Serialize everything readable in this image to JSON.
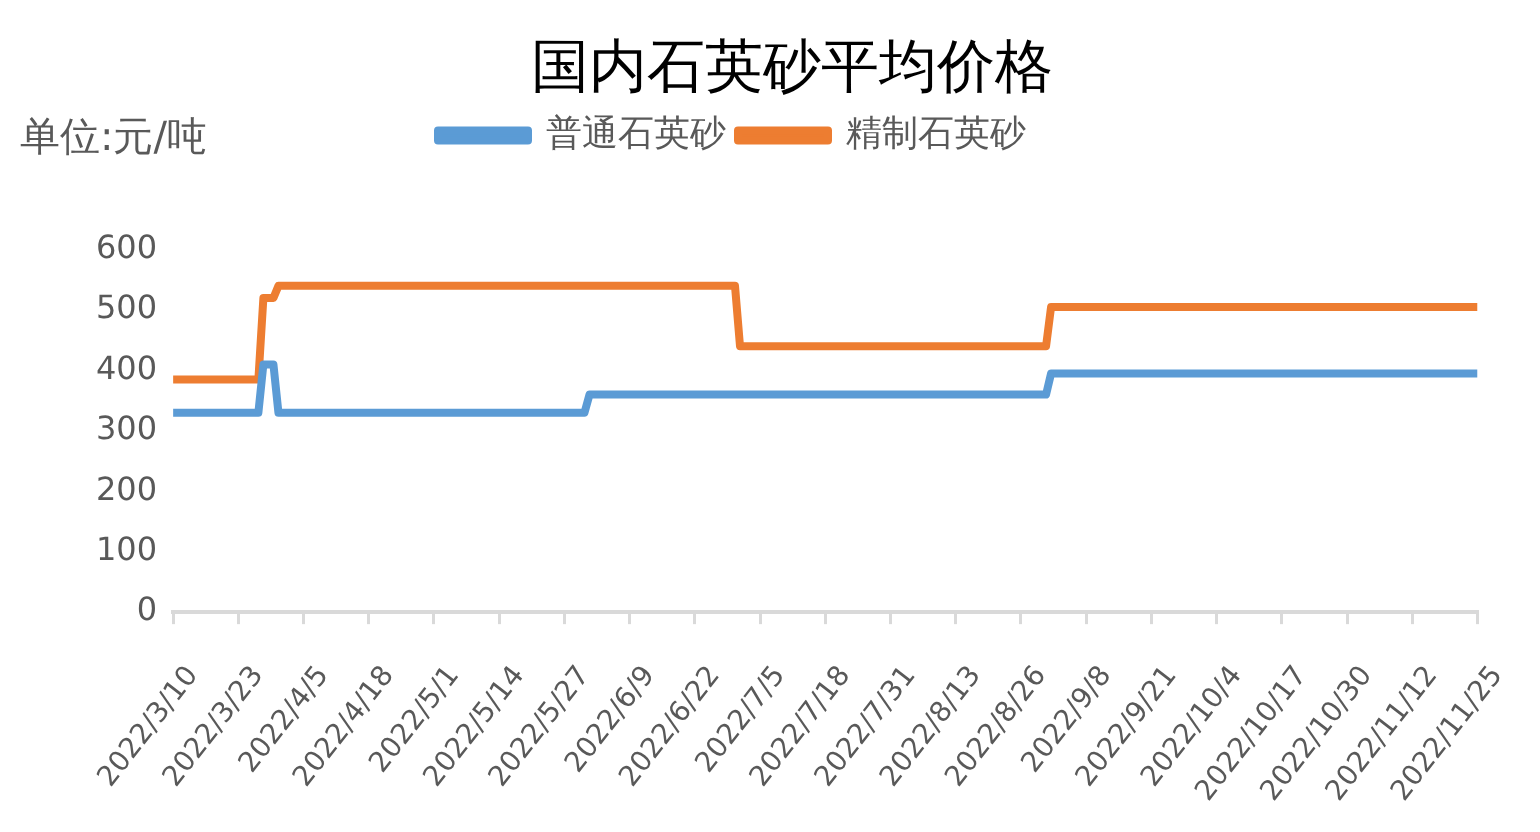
{
  "chart_data": {
    "type": "line",
    "title": "国内石英砂平均价格",
    "ylabel": "单位:元/吨",
    "legend": "top",
    "grid": false,
    "marker": "none",
    "line_style": "solid",
    "xlim": [
      "2022-03-10",
      "2022-11-25"
    ],
    "xticks": [
      {
        "value": "2022-03-10",
        "label": "2022/3/10"
      },
      {
        "value": "2022-03-23",
        "label": "2022/3/23"
      },
      {
        "value": "2022-04-05",
        "label": "2022/4/5"
      },
      {
        "value": "2022-04-18",
        "label": "2022/4/18"
      },
      {
        "value": "2022-05-01",
        "label": "2022/5/1"
      },
      {
        "value": "2022-05-14",
        "label": "2022/5/14"
      },
      {
        "value": "2022-05-27",
        "label": "2022/5/27"
      },
      {
        "value": "2022-06-09",
        "label": "2022/6/9"
      },
      {
        "value": "2022-06-22",
        "label": "2022/6/22"
      },
      {
        "value": "2022-07-05",
        "label": "2022/7/5"
      },
      {
        "value": "2022-07-18",
        "label": "2022/7/18"
      },
      {
        "value": "2022-07-31",
        "label": "2022/7/31"
      },
      {
        "value": "2022-08-13",
        "label": "2022/8/13"
      },
      {
        "value": "2022-08-26",
        "label": "2022/8/26"
      },
      {
        "value": "2022-09-08",
        "label": "2022/9/8"
      },
      {
        "value": "2022-09-21",
        "label": "2022/9/21"
      },
      {
        "value": "2022-10-04",
        "label": "2022/10/4"
      },
      {
        "value": "2022-10-17",
        "label": "2022/10/17"
      },
      {
        "value": "2022-10-30",
        "label": "2022/10/30"
      },
      {
        "value": "2022-11-12",
        "label": "2022/11/12"
      },
      {
        "value": "2022-11-25",
        "label": "2022/11/25"
      }
    ],
    "ylim": [
      0,
      600
    ],
    "yticks": [
      0,
      100,
      200,
      300,
      400,
      500,
      600
    ],
    "series": [
      {
        "name": "普通石英砂",
        "color": "#5b9bd5",
        "x": [
          "2022-03-10",
          "2022-03-27",
          "2022-03-28",
          "2022-03-30",
          "2022-03-31",
          "2022-05-31",
          "2022-06-01",
          "2022-08-31",
          "2022-09-01",
          "2022-11-25"
        ],
        "values": [
          330,
          330,
          410,
          410,
          330,
          330,
          360,
          360,
          395,
          395
        ]
      },
      {
        "name": "精制石英砂",
        "color": "#ed7d31",
        "x": [
          "2022-03-10",
          "2022-03-27",
          "2022-03-28",
          "2022-03-30",
          "2022-03-31",
          "2022-06-30",
          "2022-07-01",
          "2022-08-31",
          "2022-09-01",
          "2022-11-25"
        ],
        "values": [
          385,
          385,
          520,
          520,
          540,
          540,
          440,
          440,
          505,
          505
        ]
      }
    ]
  }
}
